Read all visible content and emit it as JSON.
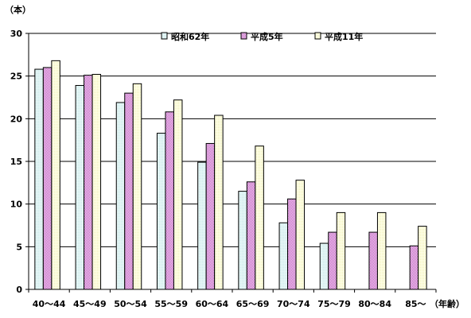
{
  "chart_data": {
    "type": "bar",
    "y_unit_label": "（本）",
    "x_unit_label": "（年齢）",
    "ylim": [
      0,
      30
    ],
    "yticks": [
      0,
      5,
      10,
      15,
      20,
      25,
      30
    ],
    "grid": true,
    "legend_position": "top",
    "categories": [
      "40～44",
      "45～49",
      "50～54",
      "55～59",
      "60～64",
      "65～69",
      "70～74",
      "75～79",
      "80～84",
      "85～"
    ],
    "series": [
      {
        "name": "昭和62年",
        "values": [
          25.8,
          23.9,
          21.9,
          18.3,
          14.9,
          11.5,
          7.8,
          5.4,
          null,
          null
        ],
        "color": "#e8f7f7"
      },
      {
        "name": "平成5年",
        "values": [
          26.0,
          25.1,
          23.0,
          20.8,
          17.1,
          12.6,
          10.6,
          6.7,
          6.7,
          5.1
        ],
        "color": "#f2d6f2"
      },
      {
        "name": "平成11年",
        "values": [
          26.8,
          25.2,
          24.1,
          22.2,
          20.4,
          16.8,
          12.8,
          9.0,
          9.0,
          7.4
        ],
        "color": "#fdfde0"
      }
    ]
  }
}
